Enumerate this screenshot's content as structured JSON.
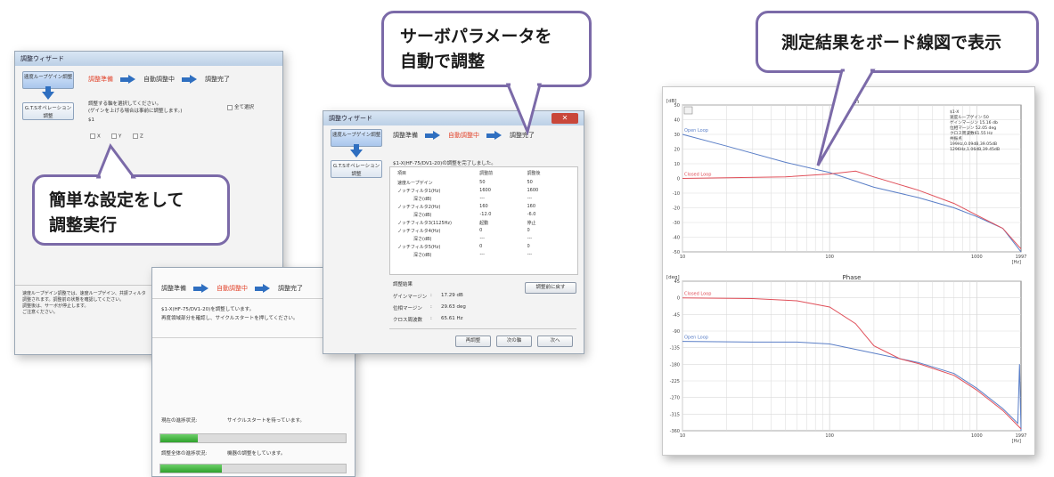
{
  "callouts": {
    "left": [
      "簡単な設定をして",
      "調整実行"
    ],
    "middle": [
      "サーボパラメータを",
      "自動で調整"
    ],
    "right": [
      "測定結果をボード線図で表示"
    ]
  },
  "win1": {
    "title": "調整ウィザード",
    "side_button_1": "速度ループゲイン調整",
    "side_button_2": "G.T.Sオペレーション調整",
    "steps": [
      "調整準備",
      "自動調整中",
      "調整完了"
    ],
    "instruction_1": "調整する軸を選択してください。",
    "instruction_2": "(ゲインを上げる場合は事前に調整します。)",
    "select_all": "全て選択",
    "axis_group": "$1",
    "axes": [
      "X",
      "Y",
      "Z"
    ],
    "note_1": "速度ループゲイン調整では、速度ループゲイン、共振フィルタ",
    "note_2": "調整されます。調整前の状態を確認してください。",
    "note_3": "調整後は、サーボが停止します。",
    "note_4": "ご注意ください。"
  },
  "win2": {
    "steps": [
      "調整準備",
      "自動調整中",
      "調整完了"
    ],
    "message_1": "$1-X(HF-75/DV1-20)を調整しています。",
    "message_2": "再度領域部分を確認し、サイクルスタートを押してください。",
    "current_label": "現在の進捗状況:",
    "current_value": "サイクルスタートを待っています。",
    "current_progress": 0.2,
    "total_label": "調整全体の進捗状況:",
    "total_value": "機器の調整をしています。",
    "total_progress": 0.33
  },
  "win3": {
    "title": "調整ウィザード",
    "side_button_1": "速度ループゲイン調整",
    "side_button_2": "G.T.Sオペレーション調整",
    "steps": [
      "調整準備",
      "自動調整中",
      "調整完了"
    ],
    "completion_message": "$1-X(HF-75/DV1-20)の調整を完了しました。",
    "table_headers": [
      "項目",
      "調整前",
      "調整後"
    ],
    "table_rows": [
      [
        "速度ループゲイン",
        "50",
        "50"
      ],
      [
        "ノッチフィルタ1(Hz)",
        "1600",
        "1600"
      ],
      [
        "深さ(dB)",
        "---",
        "---"
      ],
      [
        "ノッチフィルタ2(Hz)",
        "160",
        "160"
      ],
      [
        "深さ(dB)",
        "-12.0",
        "-6.0"
      ],
      [
        "ノッチフィルタ3(1125Hz)",
        "起動",
        "停止"
      ],
      [
        "ノッチフィルタ4(Hz)",
        "0",
        "0"
      ],
      [
        "深さ(dB)",
        "---",
        "---"
      ],
      [
        "ノッチフィルタ5(Hz)",
        "0",
        "0"
      ],
      [
        "深さ(dB)",
        "---",
        "---"
      ]
    ],
    "results_label": "調整結果",
    "reset_button": "調整前に戻す",
    "gain_margin_label": "ゲインマージン",
    "gain_margin_value": "17.29 dB",
    "phase_margin_label": "位相マージン",
    "phase_margin_value": "29.63 deg",
    "crossover_label": "クロス周波数",
    "crossover_value": "65.61 Hz",
    "buttons": [
      "再調整",
      "次の軸",
      "次へ"
    ]
  },
  "bode": {
    "upper_unit": "[dB]",
    "upper_title": "Gain",
    "upper_y_ticks": [
      "50",
      "40",
      "30",
      "20",
      "10",
      "0",
      "-10",
      "-20",
      "-30",
      "-40",
      "-50"
    ],
    "lower_unit": "[deg]",
    "lower_title": "Phase",
    "lower_y_ticks": [
      "45",
      "0",
      "-45",
      "-90",
      "-135",
      "-180",
      "-225",
      "-270",
      "-315",
      "-360"
    ],
    "x_ticks": [
      "10",
      "100",
      "1000",
      "1997"
    ],
    "x_unit": "[Hz]",
    "series_open": "Open Loop",
    "series_closed": "Closed Loop",
    "info_lines": [
      "$1-X",
      "速度ループゲイン:50",
      "ゲインマージン 15.16 db",
      "位相マージン 52.05 deg",
      "クロス周波数61.55 Hz",
      "共振点",
      "199Hz,0.09dB,39.05dB",
      "1296Hz,1.06dB,39.45dB"
    ],
    "colors": {
      "open": "#5b7fc7",
      "closed": "#e0505a",
      "grid": "#d9d9d9"
    }
  },
  "chart_data": [
    {
      "type": "line",
      "title": "Gain",
      "ylabel": "[dB]",
      "xlabel": "[Hz]",
      "x_scale": "log",
      "xlim": [
        10,
        1997
      ],
      "ylim": [
        -50,
        50
      ],
      "series": [
        {
          "name": "Open Loop",
          "x": [
            10,
            20,
            50,
            100,
            200,
            400,
            700,
            1000,
            1500,
            1997
          ],
          "y": [
            30,
            22,
            11,
            4,
            -6,
            -13,
            -20,
            -26,
            -34,
            -50
          ]
        },
        {
          "name": "Closed Loop",
          "x": [
            10,
            20,
            50,
            100,
            150,
            200,
            400,
            700,
            1000,
            1500,
            1997
          ],
          "y": [
            0,
            0.5,
            1,
            3,
            5,
            1,
            -8,
            -17,
            -25,
            -34,
            -48
          ]
        }
      ]
    },
    {
      "type": "line",
      "title": "Phase",
      "ylabel": "[deg]",
      "xlabel": "[Hz]",
      "x_scale": "log",
      "xlim": [
        10,
        1997
      ],
      "ylim": [
        -360,
        45
      ],
      "series": [
        {
          "name": "Open Loop",
          "x": [
            10,
            30,
            60,
            100,
            200,
            400,
            700,
            1000,
            1500,
            1900,
            1950,
            1997
          ],
          "y": [
            -118,
            -120,
            -120,
            -125,
            -150,
            -175,
            -205,
            -245,
            -300,
            -340,
            -180,
            -360
          ]
        },
        {
          "name": "Closed Loop",
          "x": [
            10,
            30,
            60,
            100,
            150,
            200,
            300,
            400,
            700,
            1000,
            1500,
            1997
          ],
          "y": [
            0,
            -2,
            -8,
            -25,
            -70,
            -130,
            -165,
            -178,
            -210,
            -250,
            -305,
            -355
          ]
        }
      ]
    }
  ]
}
